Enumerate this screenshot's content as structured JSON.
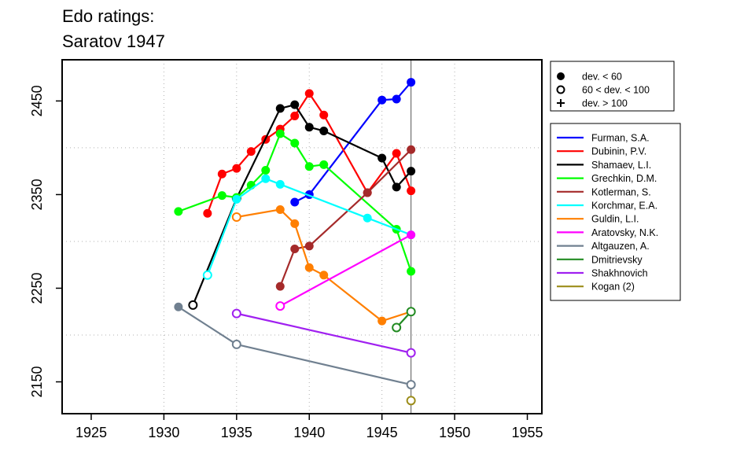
{
  "chart_data": {
    "type": "line",
    "title": [
      "Edo ratings:",
      "Saratov 1947"
    ],
    "xlabel": "",
    "ylabel": "",
    "xlim": [
      1923,
      1956
    ],
    "ylim": [
      2116,
      2494
    ],
    "x_ticks": [
      1925,
      1930,
      1935,
      1940,
      1945,
      1950,
      1955
    ],
    "y_ticks": [
      2150,
      2250,
      2350,
      2450
    ],
    "grid": "dotted",
    "reference_line_x": 1947,
    "marker_legend": {
      "placement": "top-right",
      "entries": [
        {
          "marker": "filled",
          "label": "dev. < 60"
        },
        {
          "marker": "open",
          "label": "60 < dev. < 100"
        },
        {
          "marker": "plus",
          "label": "dev. > 100"
        }
      ]
    },
    "series_legend_placement": "right",
    "series": [
      {
        "name": "Furman, S.A.",
        "color": "#0000ff",
        "points": [
          [
            1939,
            2342,
            "filled"
          ],
          [
            1940,
            2350,
            "filled"
          ],
          [
            1945,
            2451,
            "filled"
          ],
          [
            1946,
            2452,
            "filled"
          ],
          [
            1947,
            2470,
            "filled"
          ]
        ]
      },
      {
        "name": "Dubinin, P.V.",
        "color": "#ff0000",
        "points": [
          [
            1933,
            2330,
            "filled"
          ],
          [
            1934,
            2372,
            "filled"
          ],
          [
            1935,
            2378,
            "filled"
          ],
          [
            1936,
            2396,
            "filled"
          ],
          [
            1937,
            2409,
            "filled"
          ],
          [
            1938,
            2420,
            "filled"
          ],
          [
            1939,
            2434,
            "filled"
          ],
          [
            1940,
            2458,
            "filled"
          ],
          [
            1941,
            2435,
            "filled"
          ],
          [
            1944,
            2352,
            "filled"
          ],
          [
            1946,
            2394,
            "filled"
          ],
          [
            1947,
            2354,
            "filled"
          ]
        ]
      },
      {
        "name": "Shamaev, L.I.",
        "color": "#000000",
        "points": [
          [
            1932,
            2232,
            "open"
          ],
          [
            1935,
            2346,
            "open"
          ],
          [
            1938,
            2442,
            "filled"
          ],
          [
            1939,
            2446,
            "filled"
          ],
          [
            1940,
            2422,
            "filled"
          ],
          [
            1941,
            2418,
            "filled"
          ],
          [
            1945,
            2389,
            "filled"
          ],
          [
            1946,
            2358,
            "filled"
          ],
          [
            1947,
            2375,
            "filled"
          ]
        ]
      },
      {
        "name": "Grechkin, D.M.",
        "color": "#00ff00",
        "points": [
          [
            1931,
            2332,
            "filled"
          ],
          [
            1934,
            2349,
            "filled"
          ],
          [
            1935,
            2347,
            "filled"
          ],
          [
            1936,
            2360,
            "filled"
          ],
          [
            1937,
            2376,
            "filled"
          ],
          [
            1938,
            2415,
            "filled"
          ],
          [
            1939,
            2405,
            "filled"
          ],
          [
            1940,
            2380,
            "filled"
          ],
          [
            1941,
            2382,
            "filled"
          ],
          [
            1946,
            2313,
            "filled"
          ],
          [
            1947,
            2268,
            "filled"
          ]
        ]
      },
      {
        "name": "Kotlerman, S.",
        "color": "#a52a2a",
        "points": [
          [
            1938,
            2252,
            "filled"
          ],
          [
            1939,
            2292,
            "filled"
          ],
          [
            1940,
            2295,
            "filled"
          ],
          [
            1944,
            2352,
            "filled"
          ],
          [
            1947,
            2398,
            "filled"
          ]
        ]
      },
      {
        "name": "Korchmar, E.A.",
        "color": "#00ffff",
        "points": [
          [
            1933,
            2264,
            "open"
          ],
          [
            1935,
            2345,
            "filled"
          ],
          [
            1937,
            2367,
            "filled"
          ],
          [
            1938,
            2361,
            "filled"
          ],
          [
            1944,
            2325,
            "filled"
          ],
          [
            1947,
            2307,
            "filled"
          ]
        ]
      },
      {
        "name": "Guldin, L.I.",
        "color": "#ff7f00",
        "points": [
          [
            1935,
            2326,
            "open"
          ],
          [
            1938,
            2334,
            "filled"
          ],
          [
            1939,
            2319,
            "filled"
          ],
          [
            1940,
            2272,
            "filled"
          ],
          [
            1941,
            2264,
            "filled"
          ],
          [
            1945,
            2215,
            "filled"
          ],
          [
            1947,
            2225,
            "filled"
          ]
        ]
      },
      {
        "name": "Aratovsky, N.K.",
        "color": "#ff00ff",
        "points": [
          [
            1938,
            2231,
            "open"
          ],
          [
            1947,
            2307,
            "filled"
          ]
        ]
      },
      {
        "name": "Altgauzen, A.",
        "color": "#708090",
        "points": [
          [
            1931,
            2230,
            "filled"
          ],
          [
            1935,
            2190,
            "open"
          ],
          [
            1947,
            2147,
            "open"
          ]
        ]
      },
      {
        "name": "Dmitrievsky",
        "color": "#228b22",
        "points": [
          [
            1946,
            2208,
            "open"
          ],
          [
            1947,
            2225,
            "open"
          ]
        ]
      },
      {
        "name": "Shakhnovich",
        "color": "#a020f0",
        "points": [
          [
            1935,
            2223,
            "open"
          ],
          [
            1947,
            2181,
            "open"
          ]
        ]
      },
      {
        "name": "Kogan (2)",
        "color": "#9c8d1a",
        "points": [
          [
            1947,
            2130,
            "open"
          ]
        ]
      }
    ]
  }
}
